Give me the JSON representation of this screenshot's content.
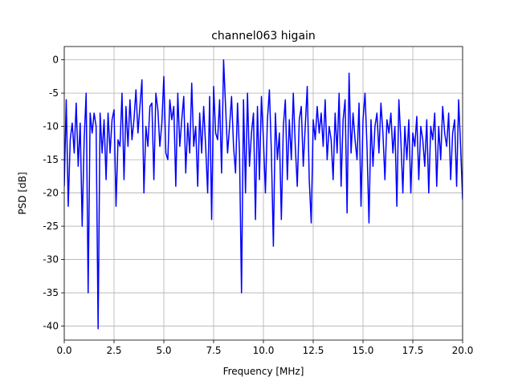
{
  "chart_data": {
    "type": "line",
    "title": "channel063 higain",
    "xlabel": "Frequency [MHz]",
    "ylabel": "PSD [dB]",
    "xlim": [
      0,
      20
    ],
    "ylim": [
      -42.1,
      2.0
    ],
    "xticks": [
      {
        "value": 0,
        "label": "0.0"
      },
      2.5,
      {
        "value": 5,
        "label": "5.0"
      },
      7.5,
      {
        "value": 10,
        "label": "10.0"
      },
      12.5,
      {
        "value": 15,
        "label": "15.0"
      },
      17.5,
      {
        "value": 20,
        "label": "20.0"
      }
    ],
    "yticks": [
      0,
      -5,
      -10,
      -15,
      -20,
      -25,
      -30,
      -35,
      -40
    ],
    "grid": true,
    "x": [
      0.0,
      0.1,
      0.2,
      0.3,
      0.4,
      0.5,
      0.6,
      0.7,
      0.8,
      0.9,
      1.0,
      1.1,
      1.2,
      1.3,
      1.4,
      1.5,
      1.6,
      1.7,
      1.8,
      1.9,
      2.0,
      2.1,
      2.2,
      2.3,
      2.4,
      2.5,
      2.6,
      2.7,
      2.8,
      2.9,
      3.0,
      3.1,
      3.2,
      3.3,
      3.4,
      3.5,
      3.6,
      3.7,
      3.8,
      3.9,
      4.0,
      4.1,
      4.2,
      4.3,
      4.4,
      4.5,
      4.6,
      4.7,
      4.8,
      4.9,
      5.0,
      5.1,
      5.2,
      5.3,
      5.4,
      5.5,
      5.6,
      5.7,
      5.8,
      5.9,
      6.0,
      6.1,
      6.2,
      6.3,
      6.4,
      6.5,
      6.6,
      6.7,
      6.8,
      6.9,
      7.0,
      7.1,
      7.2,
      7.3,
      7.4,
      7.5,
      7.6,
      7.7,
      7.8,
      7.9,
      8.0,
      8.1,
      8.2,
      8.3,
      8.4,
      8.5,
      8.6,
      8.7,
      8.8,
      8.9,
      9.0,
      9.1,
      9.2,
      9.3,
      9.4,
      9.5,
      9.6,
      9.7,
      9.8,
      9.9,
      10.0,
      10.1,
      10.2,
      10.3,
      10.4,
      10.5,
      10.6,
      10.7,
      10.8,
      10.9,
      11.0,
      11.1,
      11.2,
      11.3,
      11.4,
      11.5,
      11.6,
      11.7,
      11.8,
      11.9,
      12.0,
      12.1,
      12.2,
      12.3,
      12.4,
      12.5,
      12.6,
      12.7,
      12.8,
      12.9,
      13.0,
      13.1,
      13.2,
      13.3,
      13.4,
      13.5,
      13.6,
      13.7,
      13.8,
      13.9,
      14.0,
      14.1,
      14.2,
      14.3,
      14.4,
      14.5,
      14.6,
      14.7,
      14.8,
      14.9,
      15.0,
      15.1,
      15.2,
      15.3,
      15.4,
      15.5,
      15.6,
      15.7,
      15.8,
      15.9,
      16.0,
      16.1,
      16.2,
      16.3,
      16.4,
      16.5,
      16.6,
      16.7,
      16.8,
      16.9,
      17.0,
      17.1,
      17.2,
      17.3,
      17.4,
      17.5,
      17.6,
      17.7,
      17.8,
      17.9,
      18.0,
      18.1,
      18.2,
      18.3,
      18.4,
      18.5,
      18.6,
      18.7,
      18.8,
      18.9,
      19.0,
      19.1,
      19.2,
      19.3,
      19.4,
      19.5,
      19.6,
      19.7,
      19.8,
      19.9,
      20.0
    ],
    "series": [
      {
        "name": "channel063",
        "color": "#0000ff",
        "values": [
          -19,
          -6,
          -22,
          -12,
          -9.5,
          -14,
          -6.5,
          -16,
          -9.5,
          -25,
          -12,
          -5,
          -35,
          -8,
          -11,
          -8,
          -10,
          -40.4,
          -8,
          -14,
          -9,
          -18,
          -8,
          -14,
          -9,
          -7.5,
          -22,
          -12,
          -13,
          -5,
          -18,
          -7,
          -13,
          -6,
          -12,
          -9,
          -4.5,
          -11,
          -7,
          -3,
          -20,
          -10,
          -13,
          -7,
          -6.5,
          -18,
          -5,
          -7.5,
          -13,
          -9.5,
          -2.5,
          -14,
          -15,
          -6,
          -9,
          -7,
          -19,
          -5,
          -13,
          -9,
          -5.5,
          -17,
          -9.5,
          -14,
          -3.5,
          -13,
          -10,
          -19,
          -8,
          -14,
          -7,
          -13,
          -20,
          -5.5,
          -24,
          -4,
          -11,
          -12,
          -6,
          -17,
          0,
          -7,
          -14,
          -10,
          -5.5,
          -13,
          -17,
          -6.5,
          -14,
          -35,
          -6,
          -20,
          -5,
          -16,
          -11,
          -8,
          -24,
          -7,
          -18,
          -5.5,
          -12,
          -20,
          -9,
          -4.5,
          -14,
          -28,
          -8,
          -15,
          -11,
          -24,
          -10,
          -6,
          -18,
          -9,
          -15,
          -5,
          -13,
          -19,
          -9,
          -7,
          -16,
          -10,
          -4,
          -18,
          -24.5,
          -9,
          -12,
          -7,
          -11,
          -8,
          -13,
          -6,
          -15,
          -10,
          -12,
          -18,
          -8,
          -14,
          -5,
          -19,
          -9,
          -6,
          -23,
          -2,
          -14,
          -8,
          -12,
          -15,
          -6.5,
          -22,
          -9,
          -5,
          -13,
          -24.5,
          -9,
          -16,
          -10,
          -8,
          -14,
          -6.5,
          -11,
          -18,
          -9,
          -11,
          -8,
          -14,
          -10,
          -22,
          -6,
          -12,
          -20,
          -10,
          -15,
          -9,
          -20,
          -11,
          -13,
          -8.5,
          -18,
          -10,
          -12,
          -16,
          -9,
          -20,
          -10,
          -12,
          -8,
          -19,
          -10,
          -15,
          -7,
          -11,
          -13,
          -8,
          -18,
          -11,
          -9,
          -19,
          -6,
          -13,
          -21
        ]
      }
    ]
  }
}
